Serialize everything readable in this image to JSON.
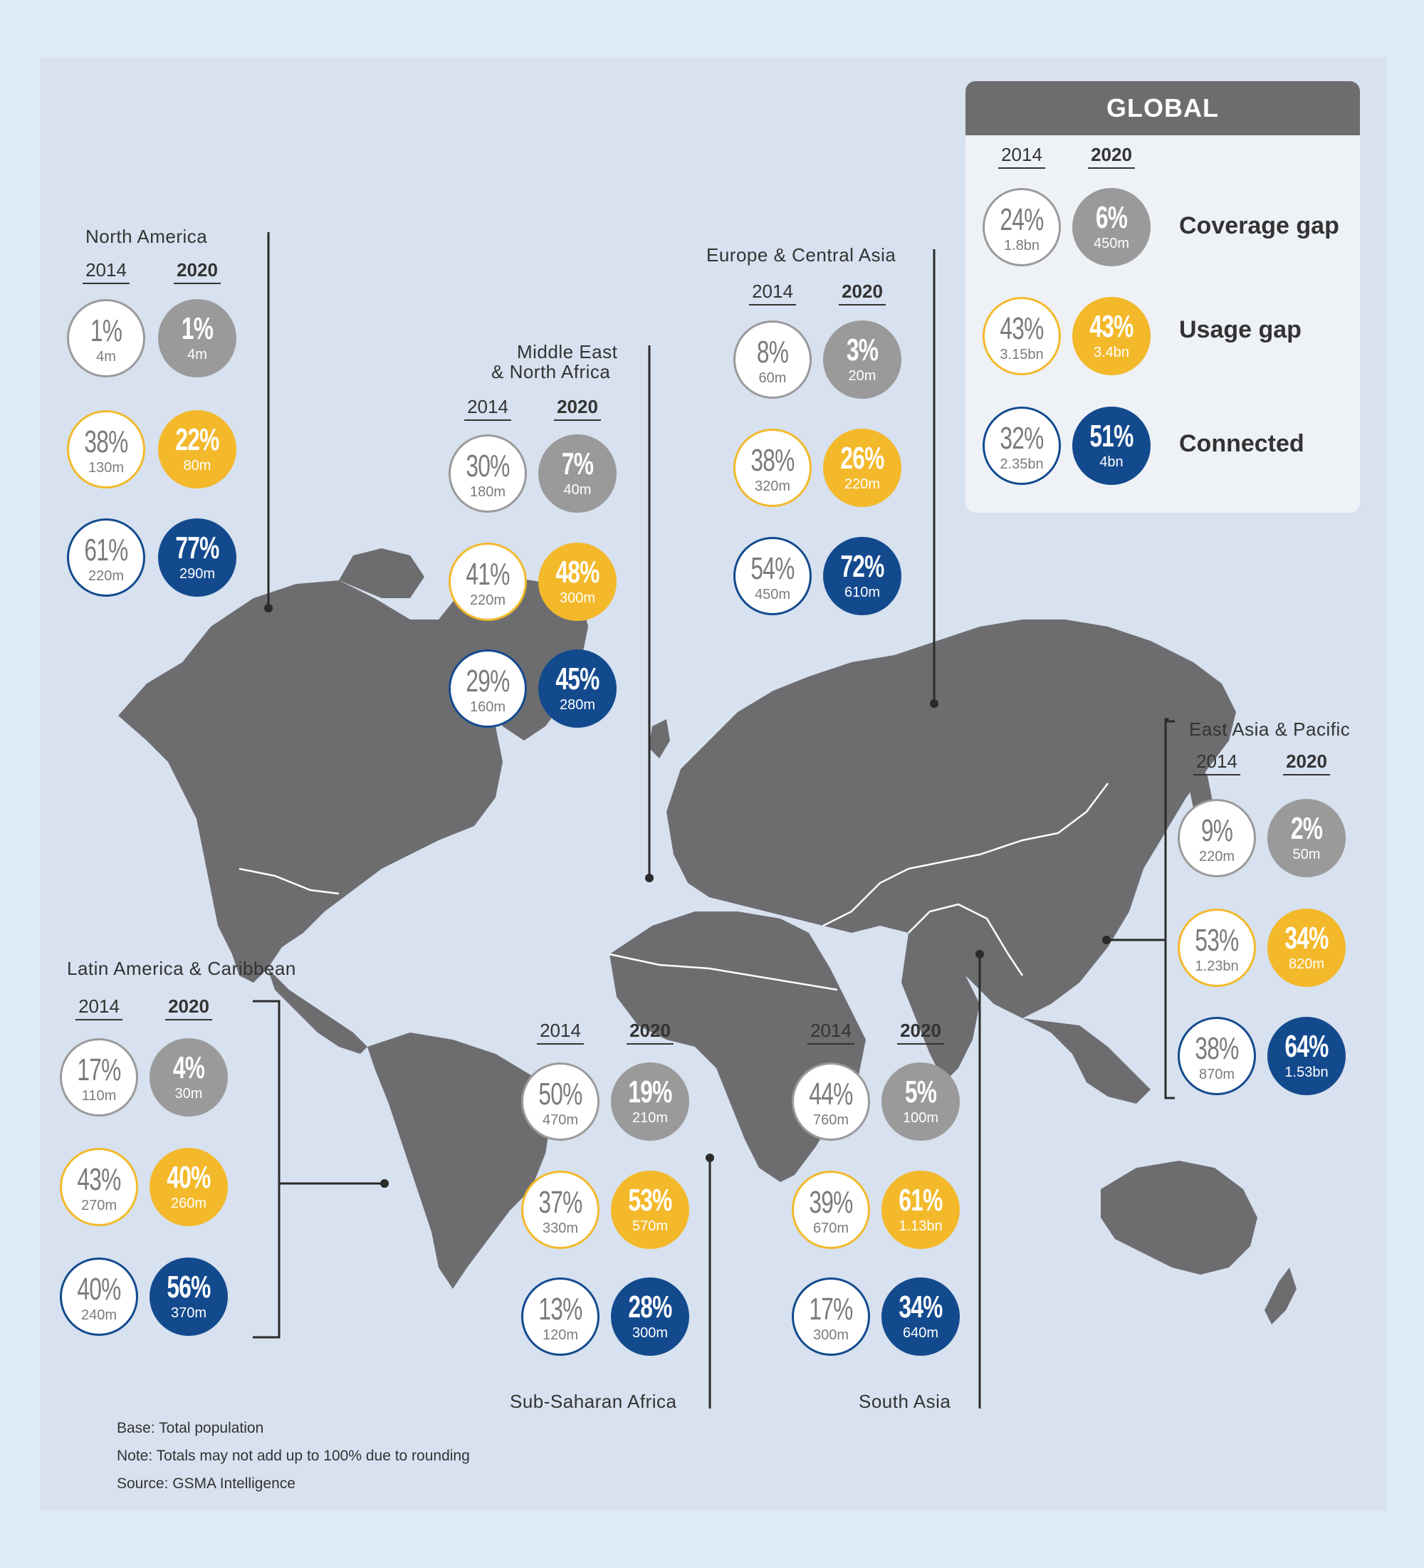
{
  "global": {
    "title": "GLOBAL",
    "year_2014": "2014",
    "year_2020": "2020",
    "rows": [
      {
        "label": "Coverage gap",
        "p14": "24%",
        "c14": "1.8bn",
        "p20": "6%",
        "c20": "450m"
      },
      {
        "label": "Usage gap",
        "p14": "43%",
        "c14": "3.15bn",
        "p20": "43%",
        "c20": "3.4bn"
      },
      {
        "label": "Connected",
        "p14": "32%",
        "c14": "2.35bn",
        "p20": "51%",
        "c20": "4bn"
      }
    ]
  },
  "regions": {
    "north_america": {
      "name": "North America",
      "year_2014": "2014",
      "year_2020": "2020",
      "rows": [
        {
          "p14": "1%",
          "c14": "4m",
          "p20": "1%",
          "c20": "4m"
        },
        {
          "p14": "38%",
          "c14": "130m",
          "p20": "22%",
          "c20": "80m"
        },
        {
          "p14": "61%",
          "c14": "220m",
          "p20": "77%",
          "c20": "290m"
        }
      ]
    },
    "mena": {
      "name_line1": "Middle East",
      "name_line2": "& North Africa",
      "year_2014": "2014",
      "year_2020": "2020",
      "rows": [
        {
          "p14": "30%",
          "c14": "180m",
          "p20": "7%",
          "c20": "40m"
        },
        {
          "p14": "41%",
          "c14": "220m",
          "p20": "48%",
          "c20": "300m"
        },
        {
          "p14": "29%",
          "c14": "160m",
          "p20": "45%",
          "c20": "280m"
        }
      ]
    },
    "europe_central_asia": {
      "name": "Europe & Central Asia",
      "year_2014": "2014",
      "year_2020": "2020",
      "rows": [
        {
          "p14": "8%",
          "c14": "60m",
          "p20": "3%",
          "c20": "20m"
        },
        {
          "p14": "38%",
          "c14": "320m",
          "p20": "26%",
          "c20": "220m"
        },
        {
          "p14": "54%",
          "c14": "450m",
          "p20": "72%",
          "c20": "610m"
        }
      ]
    },
    "east_asia_pacific": {
      "name": "East Asia & Pacific",
      "year_2014": "2014",
      "year_2020": "2020",
      "rows": [
        {
          "p14": "9%",
          "c14": "220m",
          "p20": "2%",
          "c20": "50m"
        },
        {
          "p14": "53%",
          "c14": "1.23bn",
          "p20": "34%",
          "c20": "820m"
        },
        {
          "p14": "38%",
          "c14": "870m",
          "p20": "64%",
          "c20": "1.53bn"
        }
      ]
    },
    "latin_america": {
      "name": "Latin America & Caribbean",
      "year_2014": "2014",
      "year_2020": "2020",
      "rows": [
        {
          "p14": "17%",
          "c14": "110m",
          "p20": "4%",
          "c20": "30m"
        },
        {
          "p14": "43%",
          "c14": "270m",
          "p20": "40%",
          "c20": "260m"
        },
        {
          "p14": "40%",
          "c14": "240m",
          "p20": "56%",
          "c20": "370m"
        }
      ]
    },
    "sub_saharan_africa": {
      "name": "Sub-Saharan Africa",
      "year_2014": "2014",
      "year_2020": "2020",
      "rows": [
        {
          "p14": "50%",
          "c14": "470m",
          "p20": "19%",
          "c20": "210m"
        },
        {
          "p14": "37%",
          "c14": "330m",
          "p20": "53%",
          "c20": "570m"
        },
        {
          "p14": "13%",
          "c14": "120m",
          "p20": "28%",
          "c20": "300m"
        }
      ]
    },
    "south_asia": {
      "name": "South Asia",
      "year_2014": "2014",
      "year_2020": "2020",
      "rows": [
        {
          "p14": "44%",
          "c14": "760m",
          "p20": "5%",
          "c20": "100m"
        },
        {
          "p14": "39%",
          "c14": "670m",
          "p20": "61%",
          "c20": "1.13bn"
        },
        {
          "p14": "17%",
          "c14": "300m",
          "p20": "34%",
          "c20": "640m"
        }
      ]
    }
  },
  "footnotes": {
    "base": "Base: Total population",
    "note": "Note: Totals may not add up to 100% due to rounding",
    "source": "Source: GSMA Intelligence"
  },
  "colors": {
    "background": "#dcebf5",
    "panel": "#d7e1ef",
    "land": "#6d6d70",
    "coverage_gap": "#9a9a9a",
    "usage_gap": "#f3b92b",
    "connected": "#134a8e"
  }
}
